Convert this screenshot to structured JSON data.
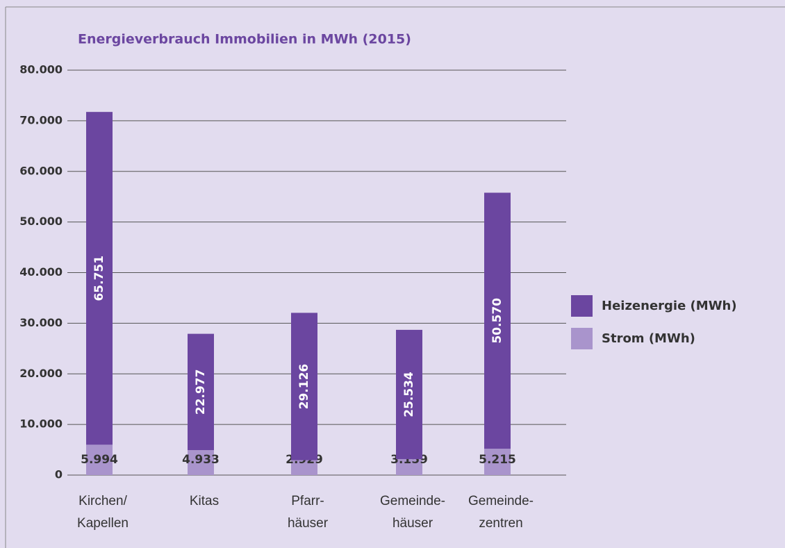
{
  "chart_data": {
    "type": "stacked_bar",
    "title": "Energieverbrauch Immobilien in MWh (2015)",
    "categories": [
      [
        "Kirchen/",
        "Kapellen"
      ],
      [
        "Kitas"
      ],
      [
        "Pfarr-",
        "häuser"
      ],
      [
        "Gemeinde-",
        "häuser"
      ],
      [
        "Gemeinde-",
        "zentren"
      ]
    ],
    "series": [
      {
        "name": "Strom (MWh)",
        "color": "#a994cc",
        "values": [
          5994,
          4933,
          2929,
          3159,
          5215
        ],
        "value_labels": [
          "5.994",
          "4.933",
          "2.929",
          "3.159",
          "5.215"
        ]
      },
      {
        "name": "Heizenergie (MWh)",
        "color": "#6b46a0",
        "values": [
          65751,
          22977,
          29126,
          25534,
          50570
        ],
        "value_labels": [
          "65.751",
          "22.977",
          "29.126",
          "25.534",
          "50.570"
        ]
      }
    ],
    "ylim": [
      0,
      80000
    ],
    "yticks": [
      0,
      {
        "value": 10000,
        "label": "10.000"
      },
      {
        "value": 20000,
        "label": "20.000"
      },
      {
        "value": 30000,
        "label": "30.000"
      },
      {
        "value": 40000,
        "label": "40.000"
      },
      {
        "value": 50000,
        "label": "50.000"
      },
      {
        "value": 60000,
        "label": "60.000"
      },
      {
        "value": 70000,
        "label": "70.000"
      },
      {
        "value": 80000,
        "label": "80.000"
      }
    ],
    "grid": true,
    "legend": "right"
  }
}
